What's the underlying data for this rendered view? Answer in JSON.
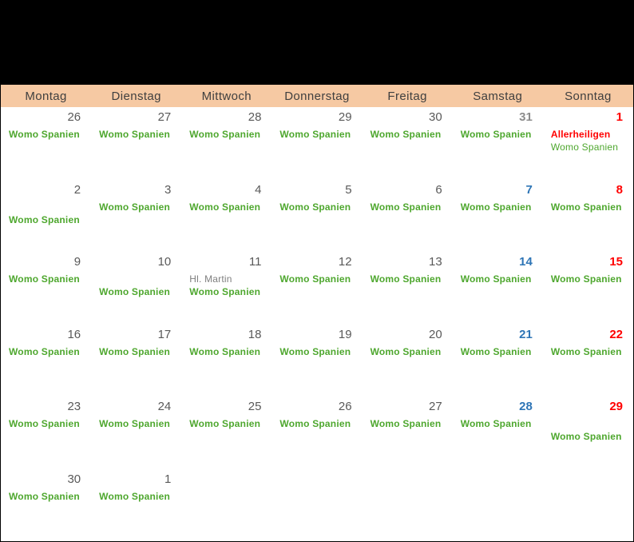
{
  "calendar": {
    "banner": {
      "label": "",
      "background": "#000000"
    },
    "colors": {
      "banner": "#000000",
      "peach": "#F6C9A3",
      "headertext": "#3F3F3F",
      "weekdaynum": "#595959",
      "outmonthnum": "#8C8C8C",
      "saturdaynum": "#2E75B6",
      "sundaynum": "#FF0000",
      "eventgreen": "#4EA72E",
      "holidayred": "#FF0000",
      "holidaygray": "#7F7F7F"
    },
    "day_header": {
      "days": [
        "Montag",
        "Dienstag",
        "Mittwoch",
        "Donnerstag",
        "Freitag",
        "Samstag",
        "Sonntag"
      ]
    },
    "weeks": [
      {
        "cells": [
          {
            "date": "26",
            "date_style": "weekday",
            "events": [
              {
                "text": "Womo Spanien",
                "style": "womo",
                "line": 1
              }
            ]
          },
          {
            "date": "27",
            "date_style": "weekday",
            "events": [
              {
                "text": "Womo Spanien",
                "style": "womo",
                "line": 1
              }
            ]
          },
          {
            "date": "28",
            "date_style": "weekday",
            "events": [
              {
                "text": "Womo Spanien",
                "style": "womo",
                "line": 1
              }
            ]
          },
          {
            "date": "29",
            "date_style": "weekday",
            "events": [
              {
                "text": "Womo Spanien",
                "style": "womo",
                "line": 1
              }
            ]
          },
          {
            "date": "30",
            "date_style": "weekday",
            "events": [
              {
                "text": "Womo Spanien",
                "style": "womo",
                "line": 1
              }
            ]
          },
          {
            "date": "31",
            "date_style": "outsat",
            "events": [
              {
                "text": "Womo Spanien",
                "style": "womo",
                "line": 1
              }
            ]
          },
          {
            "date": "1",
            "date_style": "sunday",
            "events": [
              {
                "text": "Allerheiligen",
                "style": "holiday-red",
                "line": 1
              },
              {
                "text": "Womo Spanien",
                "style": "womo-light",
                "line": 2
              }
            ]
          }
        ]
      },
      {
        "cells": [
          {
            "date": "2",
            "date_style": "weekday",
            "events": [
              {
                "text": "Womo Spanien",
                "style": "womo",
                "line": 2
              }
            ]
          },
          {
            "date": "3",
            "date_style": "weekday",
            "events": [
              {
                "text": "Womo Spanien",
                "style": "womo",
                "line": 1
              }
            ]
          },
          {
            "date": "4",
            "date_style": "weekday",
            "events": [
              {
                "text": "Womo Spanien",
                "style": "womo",
                "line": 1
              }
            ]
          },
          {
            "date": "5",
            "date_style": "weekday",
            "events": [
              {
                "text": "Womo Spanien",
                "style": "womo",
                "line": 1
              }
            ]
          },
          {
            "date": "6",
            "date_style": "weekday",
            "events": [
              {
                "text": "Womo Spanien",
                "style": "womo",
                "line": 1
              }
            ]
          },
          {
            "date": "7",
            "date_style": "saturday",
            "events": [
              {
                "text": "Womo Spanien",
                "style": "womo",
                "line": 1
              }
            ]
          },
          {
            "date": "8",
            "date_style": "sunday",
            "events": [
              {
                "text": "Womo Spanien",
                "style": "womo",
                "line": 1
              }
            ]
          }
        ]
      },
      {
        "cells": [
          {
            "date": "9",
            "date_style": "weekday",
            "events": [
              {
                "text": "Womo Spanien",
                "style": "womo",
                "line": 1
              }
            ]
          },
          {
            "date": "10",
            "date_style": "weekday",
            "events": [
              {
                "text": "Womo Spanien",
                "style": "womo",
                "line": 2
              }
            ]
          },
          {
            "date": "11",
            "date_style": "weekday",
            "events": [
              {
                "text": "Hl. Martin",
                "style": "holiday-gray",
                "line": 1
              },
              {
                "text": "Womo Spanien",
                "style": "womo",
                "line": 2
              }
            ]
          },
          {
            "date": "12",
            "date_style": "weekday",
            "events": [
              {
                "text": "Womo Spanien",
                "style": "womo",
                "line": 1
              }
            ]
          },
          {
            "date": "13",
            "date_style": "weekday",
            "events": [
              {
                "text": "Womo Spanien",
                "style": "womo",
                "line": 1
              }
            ]
          },
          {
            "date": "14",
            "date_style": "saturday",
            "events": [
              {
                "text": "Womo Spanien",
                "style": "womo",
                "line": 1
              }
            ]
          },
          {
            "date": "15",
            "date_style": "sunday",
            "events": [
              {
                "text": "Womo Spanien",
                "style": "womo",
                "line": 1
              }
            ]
          }
        ]
      },
      {
        "cells": [
          {
            "date": "16",
            "date_style": "weekday",
            "events": [
              {
                "text": "Womo Spanien",
                "style": "womo",
                "line": 1
              }
            ]
          },
          {
            "date": "17",
            "date_style": "weekday",
            "events": [
              {
                "text": "Womo Spanien",
                "style": "womo",
                "line": 1
              }
            ]
          },
          {
            "date": "18",
            "date_style": "weekday",
            "events": [
              {
                "text": "Womo Spanien",
                "style": "womo",
                "line": 1
              }
            ]
          },
          {
            "date": "19",
            "date_style": "weekday",
            "events": [
              {
                "text": "Womo Spanien",
                "style": "womo",
                "line": 1
              }
            ]
          },
          {
            "date": "20",
            "date_style": "weekday",
            "events": [
              {
                "text": "Womo Spanien",
                "style": "womo",
                "line": 1
              }
            ]
          },
          {
            "date": "21",
            "date_style": "saturday",
            "events": [
              {
                "text": "Womo Spanien",
                "style": "womo",
                "line": 1
              }
            ]
          },
          {
            "date": "22",
            "date_style": "sunday",
            "events": [
              {
                "text": "Womo Spanien",
                "style": "womo",
                "line": 1
              }
            ]
          }
        ]
      },
      {
        "cells": [
          {
            "date": "23",
            "date_style": "weekday",
            "events": [
              {
                "text": "Womo Spanien",
                "style": "womo",
                "line": 1
              }
            ]
          },
          {
            "date": "24",
            "date_style": "weekday",
            "events": [
              {
                "text": "Womo Spanien",
                "style": "womo",
                "line": 1
              }
            ]
          },
          {
            "date": "25",
            "date_style": "weekday",
            "events": [
              {
                "text": "Womo Spanien",
                "style": "womo",
                "line": 1
              }
            ]
          },
          {
            "date": "26",
            "date_style": "weekday",
            "events": [
              {
                "text": "Womo Spanien",
                "style": "womo",
                "line": 1
              }
            ]
          },
          {
            "date": "27",
            "date_style": "weekday",
            "events": [
              {
                "text": "Womo Spanien",
                "style": "womo",
                "line": 1
              }
            ]
          },
          {
            "date": "28",
            "date_style": "saturday",
            "events": [
              {
                "text": "Womo Spanien",
                "style": "womo",
                "line": 1
              }
            ]
          },
          {
            "date": "29",
            "date_style": "sunday",
            "events": [
              {
                "text": "Womo Spanien",
                "style": "womo",
                "line": 2
              }
            ]
          }
        ]
      },
      {
        "cells": [
          {
            "date": "30",
            "date_style": "weekday",
            "events": [
              {
                "text": "Womo Spanien",
                "style": "womo",
                "line": 1
              }
            ]
          },
          {
            "date": "1",
            "date_style": "weekday",
            "events": [
              {
                "text": "Womo Spanien",
                "style": "womo",
                "line": 1
              }
            ]
          },
          {
            "date": "",
            "date_style": "weekday",
            "events": []
          },
          {
            "date": "",
            "date_style": "weekday",
            "events": []
          },
          {
            "date": "",
            "date_style": "weekday",
            "events": []
          },
          {
            "date": "",
            "date_style": "weekday",
            "events": []
          },
          {
            "date": "",
            "date_style": "weekday",
            "events": []
          }
        ]
      }
    ]
  }
}
